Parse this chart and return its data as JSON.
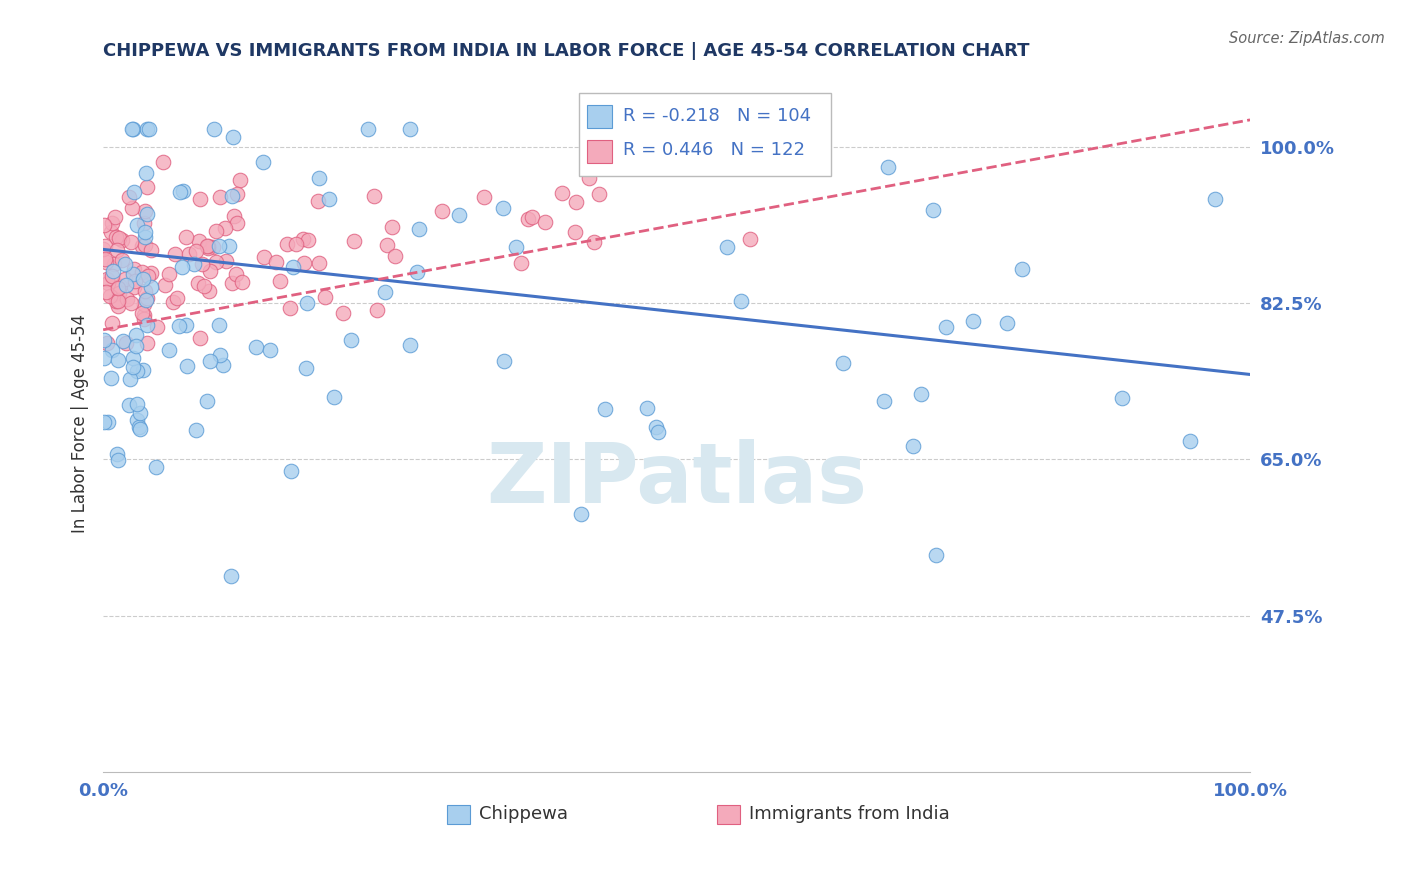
{
  "title": "CHIPPEWA VS IMMIGRANTS FROM INDIA IN LABOR FORCE | AGE 45-54 CORRELATION CHART",
  "source_text": "Source: ZipAtlas.com",
  "ylabel": "In Labor Force | Age 45-54",
  "xlim": [
    0.0,
    1.0
  ],
  "ylim": [
    0.3,
    1.08
  ],
  "ytick_vals": [
    0.475,
    0.65,
    0.825,
    1.0
  ],
  "ytick_labels": [
    "47.5%",
    "65.0%",
    "82.5%",
    "100.0%"
  ],
  "xtick_vals": [
    0.0,
    1.0
  ],
  "xtick_labels": [
    "0.0%",
    "100.0%"
  ],
  "legend_r1": "-0.218",
  "legend_n1": "104",
  "legend_r2": "0.446",
  "legend_n2": "122",
  "legend_label1": "Chippewa",
  "legend_label2": "Immigrants from India",
  "color_chippewa_fill": "#A8CFEE",
  "color_chippewa_edge": "#5B9BD5",
  "color_india_fill": "#F4AABB",
  "color_india_edge": "#E06080",
  "color_line_chippewa": "#4472C4",
  "color_line_india": "#E06080",
  "title_color": "#1F3864",
  "source_color": "#666666",
  "axis_tick_color": "#4472C4",
  "grid_color": "#CCCCCC",
  "watermark_color": "#D8E8F0",
  "R_chippewa": -0.218,
  "R_india": 0.446,
  "N_chippewa": 104,
  "N_india": 122,
  "blue_trend_y0": 0.885,
  "blue_trend_y1": 0.745,
  "pink_trend_y0": 0.795,
  "pink_trend_y1": 1.03
}
